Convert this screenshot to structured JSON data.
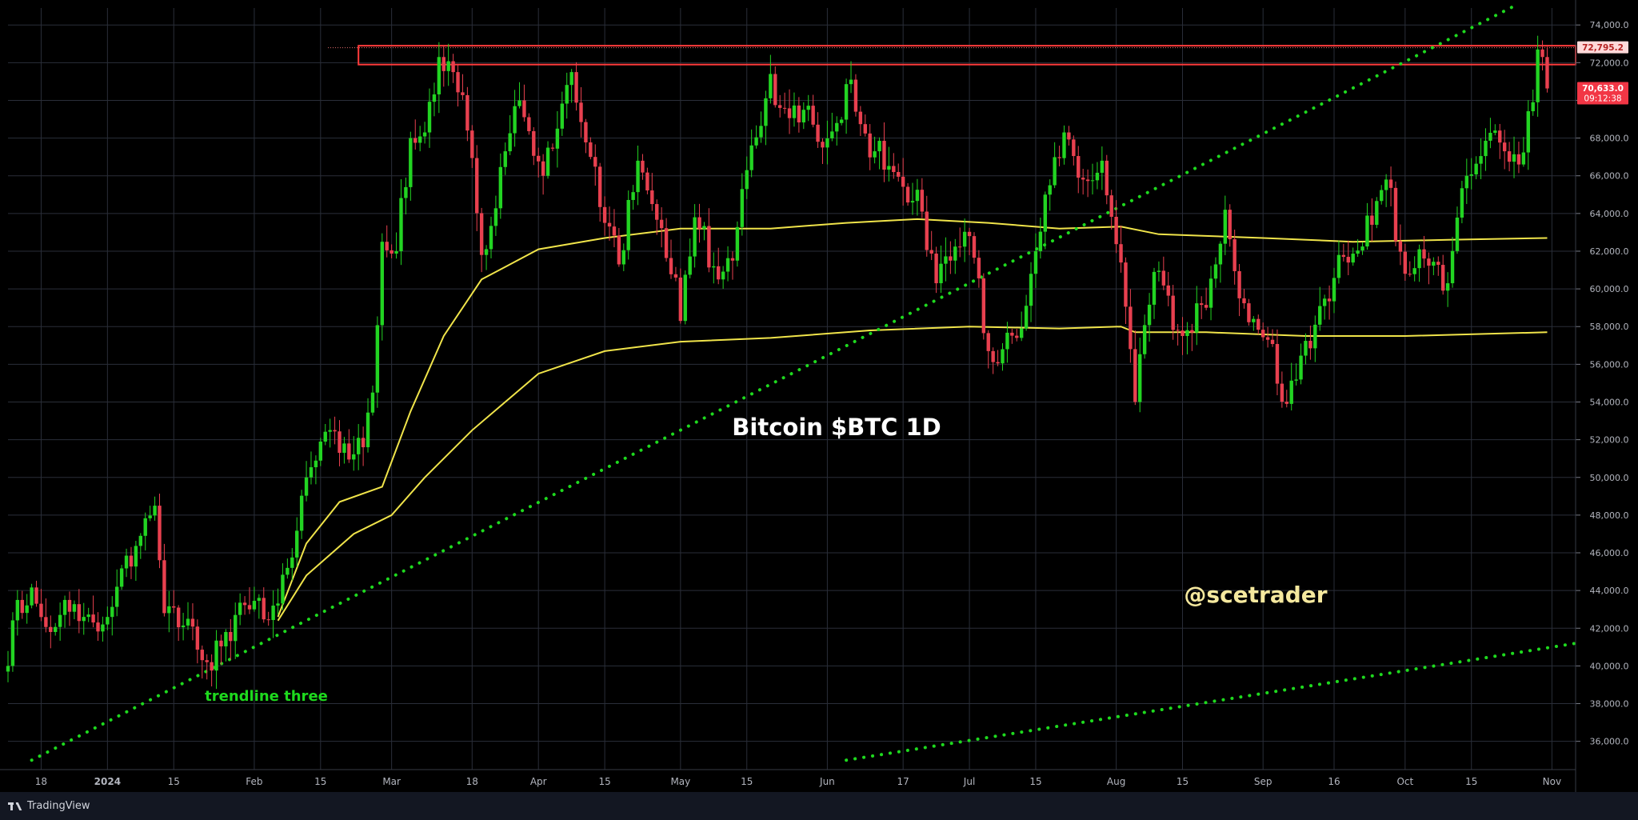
{
  "chart_data": {
    "type": "candlestick",
    "title": "Bitcoin $BTC 1D",
    "watermark": "@scetrader",
    "annotation": "trendline three",
    "x_ticks": [
      "18",
      "2024",
      "15",
      "Feb",
      "15",
      "Mar",
      "18",
      "Apr",
      "15",
      "May",
      "15",
      "Jun",
      "17",
      "Jul",
      "15",
      "Aug",
      "15",
      "Sep",
      "16",
      "Oct",
      "15",
      "Nov"
    ],
    "y_ticks": [
      "74,000.0",
      "72,000.0",
      "70,000.0",
      "68,000.0",
      "66,000.0",
      "64,000.0",
      "62,000.0",
      "60,000.0",
      "58,000.0",
      "56,000.0",
      "54,000.0",
      "52,000.0",
      "50,000.0",
      "48,000.0",
      "46,000.0",
      "44,000.0",
      "42,000.0",
      "40,000.0",
      "38,000.0",
      "36,000.0"
    ],
    "y_tick_values": [
      74000,
      72000,
      70000,
      68000,
      66000,
      64000,
      62000,
      60000,
      58000,
      56000,
      54000,
      52000,
      50000,
      48000,
      46000,
      44000,
      42000,
      40000,
      38000,
      36000
    ],
    "ylim": [
      34500,
      74900
    ],
    "x_range": [
      "2023-12-11",
      "2024-11-06"
    ],
    "x_tick_dates": [
      "2023-12-18",
      "2024-01-01",
      "2024-01-15",
      "2024-02-01",
      "2024-02-15",
      "2024-03-01",
      "2024-03-18",
      "2024-04-01",
      "2024-04-15",
      "2024-05-01",
      "2024-05-15",
      "2024-06-01",
      "2024-06-17",
      "2024-07-01",
      "2024-07-15",
      "2024-08-01",
      "2024-08-15",
      "2024-09-01",
      "2024-09-16",
      "2024-10-01",
      "2024-10-15",
      "2024-11-01"
    ],
    "price_path": [
      [
        "2023-12-11",
        40000
      ],
      [
        "2023-12-13",
        43500
      ],
      [
        "2023-12-17",
        43300
      ],
      [
        "2023-12-20",
        41800
      ],
      [
        "2023-12-23",
        43500
      ],
      [
        "2023-12-27",
        42600
      ],
      [
        "2023-12-31",
        42200
      ],
      [
        "2024-01-03",
        44200
      ],
      [
        "2024-01-08",
        46900
      ],
      [
        "2024-01-11",
        48500
      ],
      [
        "2024-01-13",
        42800
      ],
      [
        "2024-01-18",
        42500
      ],
      [
        "2024-01-22",
        40200
      ],
      [
        "2024-01-26",
        41800
      ],
      [
        "2024-01-31",
        43000
      ],
      [
        "2024-02-05",
        43200
      ],
      [
        "2024-02-08",
        45200
      ],
      [
        "2024-02-12",
        50000
      ],
      [
        "2024-02-15",
        51900
      ],
      [
        "2024-02-20",
        51800
      ],
      [
        "2024-02-24",
        51600
      ],
      [
        "2024-02-26",
        54500
      ],
      [
        "2024-02-28",
        62500
      ],
      [
        "2024-03-02",
        62000
      ],
      [
        "2024-03-05",
        68000
      ],
      [
        "2024-03-08",
        68300
      ],
      [
        "2024-03-11",
        72300
      ],
      [
        "2024-03-14",
        71500
      ],
      [
        "2024-03-17",
        68400
      ],
      [
        "2024-03-20",
        61800
      ],
      [
        "2024-03-25",
        67300
      ],
      [
        "2024-03-28",
        70000
      ],
      [
        "2024-04-02",
        66000
      ],
      [
        "2024-04-05",
        68500
      ],
      [
        "2024-04-08",
        71500
      ],
      [
        "2024-04-12",
        67000
      ],
      [
        "2024-04-15",
        63500
      ],
      [
        "2024-04-18",
        61300
      ],
      [
        "2024-04-22",
        66800
      ],
      [
        "2024-04-25",
        64500
      ],
      [
        "2024-04-30",
        60600
      ],
      [
        "2024-05-01",
        58300
      ],
      [
        "2024-05-04",
        63800
      ],
      [
        "2024-05-08",
        61200
      ],
      [
        "2024-05-12",
        61500
      ],
      [
        "2024-05-15",
        66300
      ],
      [
        "2024-05-20",
        71400
      ],
      [
        "2024-05-22",
        69600
      ],
      [
        "2024-05-27",
        69500
      ],
      [
        "2024-05-31",
        67500
      ],
      [
        "2024-06-03",
        68800
      ],
      [
        "2024-06-06",
        71100
      ],
      [
        "2024-06-07",
        69400
      ],
      [
        "2024-06-11",
        67300
      ],
      [
        "2024-06-15",
        66200
      ],
      [
        "2024-06-21",
        64100
      ],
      [
        "2024-06-24",
        60300
      ],
      [
        "2024-06-27",
        61500
      ],
      [
        "2024-07-01",
        62800
      ],
      [
        "2024-07-05",
        56700
      ],
      [
        "2024-07-08",
        56800
      ],
      [
        "2024-07-11",
        57400
      ],
      [
        "2024-07-14",
        60800
      ],
      [
        "2024-07-17",
        65000
      ],
      [
        "2024-07-21",
        68300
      ],
      [
        "2024-07-25",
        65800
      ],
      [
        "2024-07-29",
        66800
      ],
      [
        "2024-08-02",
        61400
      ],
      [
        "2024-08-05",
        54000
      ],
      [
        "2024-08-09",
        60900
      ],
      [
        "2024-08-15",
        57500
      ],
      [
        "2024-08-20",
        59000
      ],
      [
        "2024-08-24",
        64200
      ],
      [
        "2024-08-27",
        59500
      ],
      [
        "2024-09-02",
        57300
      ],
      [
        "2024-09-06",
        53900
      ],
      [
        "2024-09-12",
        58100
      ],
      [
        "2024-09-18",
        61700
      ],
      [
        "2024-09-24",
        63400
      ],
      [
        "2024-09-27",
        65800
      ],
      [
        "2024-10-01",
        60800
      ],
      [
        "2024-10-04",
        62100
      ],
      [
        "2024-10-10",
        60300
      ],
      [
        "2024-10-14",
        66000
      ],
      [
        "2024-10-20",
        68400
      ],
      [
        "2024-10-22",
        67300
      ],
      [
        "2024-10-25",
        66600
      ],
      [
        "2024-10-28",
        69900
      ],
      [
        "2024-10-29",
        72700
      ],
      [
        "2024-10-30",
        72300
      ],
      [
        "2024-10-31",
        70633
      ]
    ],
    "moving_averages": [
      {
        "color": "#f0e44a",
        "points": [
          [
            "2024-02-06",
            42600
          ],
          [
            "2024-02-12",
            46500
          ],
          [
            "2024-02-19",
            48700
          ],
          [
            "2024-02-28",
            49500
          ],
          [
            "2024-03-05",
            53500
          ],
          [
            "2024-03-12",
            57500
          ],
          [
            "2024-03-20",
            60500
          ],
          [
            "2024-04-01",
            62100
          ],
          [
            "2024-04-15",
            62700
          ],
          [
            "2024-05-01",
            63200
          ],
          [
            "2024-05-20",
            63200
          ],
          [
            "2024-06-05",
            63500
          ],
          [
            "2024-06-20",
            63700
          ],
          [
            "2024-07-05",
            63500
          ],
          [
            "2024-07-20",
            63200
          ],
          [
            "2024-08-02",
            63300
          ],
          [
            "2024-08-10",
            62900
          ],
          [
            "2024-09-01",
            62700
          ],
          [
            "2024-09-20",
            62500
          ],
          [
            "2024-10-10",
            62600
          ],
          [
            "2024-10-31",
            62700
          ]
        ]
      },
      {
        "color": "#f0e44a",
        "points": [
          [
            "2024-02-06",
            42400
          ],
          [
            "2024-02-12",
            44800
          ],
          [
            "2024-02-22",
            47000
          ],
          [
            "2024-03-01",
            48000
          ],
          [
            "2024-03-08",
            50000
          ],
          [
            "2024-03-18",
            52500
          ],
          [
            "2024-04-01",
            55500
          ],
          [
            "2024-04-15",
            56700
          ],
          [
            "2024-05-01",
            57200
          ],
          [
            "2024-05-20",
            57400
          ],
          [
            "2024-06-10",
            57800
          ],
          [
            "2024-07-01",
            58000
          ],
          [
            "2024-07-20",
            57900
          ],
          [
            "2024-08-02",
            58000
          ],
          [
            "2024-08-05",
            57700
          ],
          [
            "2024-08-20",
            57700
          ],
          [
            "2024-09-10",
            57500
          ],
          [
            "2024-10-01",
            57500
          ],
          [
            "2024-10-31",
            57700
          ]
        ]
      }
    ],
    "trendlines": [
      {
        "color": "#1ed91e",
        "style": "dotted",
        "from": [
          "2023-12-16",
          35000
        ],
        "to": [
          "2024-10-24",
          75000
        ]
      },
      {
        "color": "#1ed91e",
        "style": "dotted",
        "from": [
          "2024-06-05",
          35000
        ],
        "to": [
          "2024-11-06",
          41200
        ]
      }
    ],
    "resistance_zone": {
      "from": "2024-02-23",
      "top": 72900,
      "bottom": 71900,
      "color": "#ff3b3b"
    },
    "price_labels": [
      {
        "value": 72795.2,
        "text": "72,795.2",
        "bg": "#ffd9d9",
        "fg": "#b42323"
      },
      {
        "value": 70633,
        "text": "70,633.0",
        "countdown": "09:12:38",
        "bg": "#f23645",
        "fg": "#ffffff"
      }
    ],
    "colors": {
      "up": "#22d422",
      "down": "#e8404f",
      "grid": "#2a2e39",
      "axis_text": "#b2b5be",
      "title": "#ffffff",
      "watermark": "#f5e89e",
      "background": "#000000"
    },
    "grid": true
  },
  "footer": {
    "brand": "TradingView"
  }
}
